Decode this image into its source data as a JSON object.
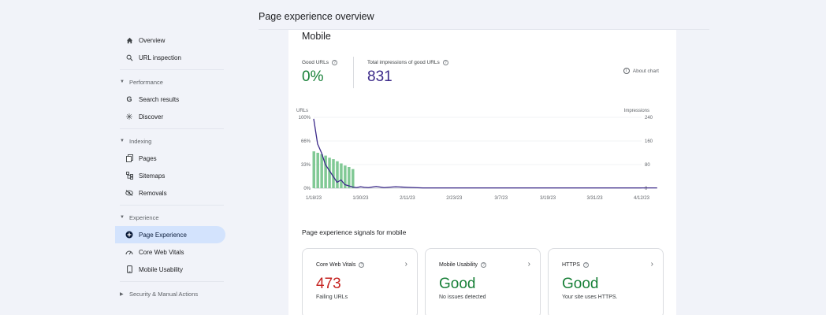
{
  "page": {
    "title": "Page experience overview"
  },
  "sidebar": {
    "top_items": [
      {
        "label": "Overview",
        "icon": "home-icon"
      },
      {
        "label": "URL inspection",
        "icon": "search-icon"
      }
    ],
    "sections": [
      {
        "label": "Performance",
        "items": [
          {
            "label": "Search results",
            "icon": "google-g-icon"
          },
          {
            "label": "Discover",
            "icon": "asterisk-icon"
          }
        ]
      },
      {
        "label": "Indexing",
        "items": [
          {
            "label": "Pages",
            "icon": "pages-icon"
          },
          {
            "label": "Sitemaps",
            "icon": "sitemap-icon"
          },
          {
            "label": "Removals",
            "icon": "eye-off-icon"
          }
        ]
      },
      {
        "label": "Experience",
        "items": [
          {
            "label": "Page Experience",
            "icon": "plus-circle-icon",
            "active": true
          },
          {
            "label": "Core Web Vitals",
            "icon": "gauge-icon"
          },
          {
            "label": "Mobile Usability",
            "icon": "phone-icon"
          }
        ]
      }
    ],
    "collapsed_section": "Security & Manual Actions"
  },
  "main": {
    "device": "Mobile",
    "metrics": {
      "good_urls_label": "Good URLs",
      "good_urls_value": "0%",
      "impressions_label": "Total impressions of good URLs",
      "impressions_value": "831"
    },
    "about_chart": "About chart",
    "signals_title": "Page experience signals for mobile",
    "signals": [
      {
        "label": "Core Web Vitals",
        "value": "473",
        "sub": "Failing URLs",
        "status": "fail"
      },
      {
        "label": "Mobile Usability",
        "value": "Good",
        "sub": "No issues detected",
        "status": "good"
      },
      {
        "label": "HTTPS",
        "value": "Good",
        "sub": "Your site uses HTTPS.",
        "status": "good"
      }
    ]
  },
  "colors": {
    "accent": "#d3e3fd",
    "good": "#188038",
    "fail": "#c5221f",
    "bars": "#81c995",
    "line": "#3c2a8a"
  },
  "chart_data": {
    "type": "bar",
    "left_axis": {
      "label": "URLs",
      "ticks": [
        "100%",
        "66%",
        "33%",
        "0%"
      ],
      "ylim": [
        0,
        100
      ]
    },
    "right_axis": {
      "label": "Impressions",
      "ticks": [
        "240",
        "160",
        "80",
        "0"
      ],
      "ylim": [
        0,
        240
      ]
    },
    "x_ticks": [
      "1/18/23",
      "1/30/23",
      "2/11/23",
      "2/23/23",
      "3/7/23",
      "3/19/23",
      "3/31/23",
      "4/12/23"
    ],
    "series": [
      {
        "name": "Good URLs",
        "axis": "left",
        "x": [
          "1/18/23",
          "1/19/23",
          "1/20/23",
          "1/21/23",
          "1/22/23",
          "1/23/23",
          "1/24/23",
          "1/25/23",
          "1/26/23",
          "1/27/23",
          "1/28/23"
        ],
        "values": [
          52,
          50,
          48,
          46,
          43,
          41,
          38,
          35,
          32,
          30,
          27
        ]
      },
      {
        "name": "Total impressions of good URLs",
        "axis": "right",
        "x": [
          "1/18/23",
          "1/19/23",
          "1/20/23",
          "1/21/23",
          "1/22/23",
          "1/23/23",
          "1/24/23",
          "1/25/23",
          "1/26/23",
          "1/27/23",
          "1/28/23",
          "1/29/23",
          "1/30/23",
          "1/31/23",
          "2/1/23",
          "2/3/23",
          "2/5/23",
          "2/8/23",
          "2/11/23",
          "2/15/23",
          "2/23/23",
          "3/7/23",
          "3/19/23",
          "3/31/23",
          "4/12/23",
          "4/16/23"
        ],
        "values": [
          235,
          150,
          120,
          80,
          60,
          40,
          20,
          28,
          12,
          8,
          4,
          2,
          5,
          3,
          2,
          6,
          2,
          5,
          3,
          1,
          1,
          1,
          1,
          1,
          1,
          1
        ]
      }
    ]
  }
}
